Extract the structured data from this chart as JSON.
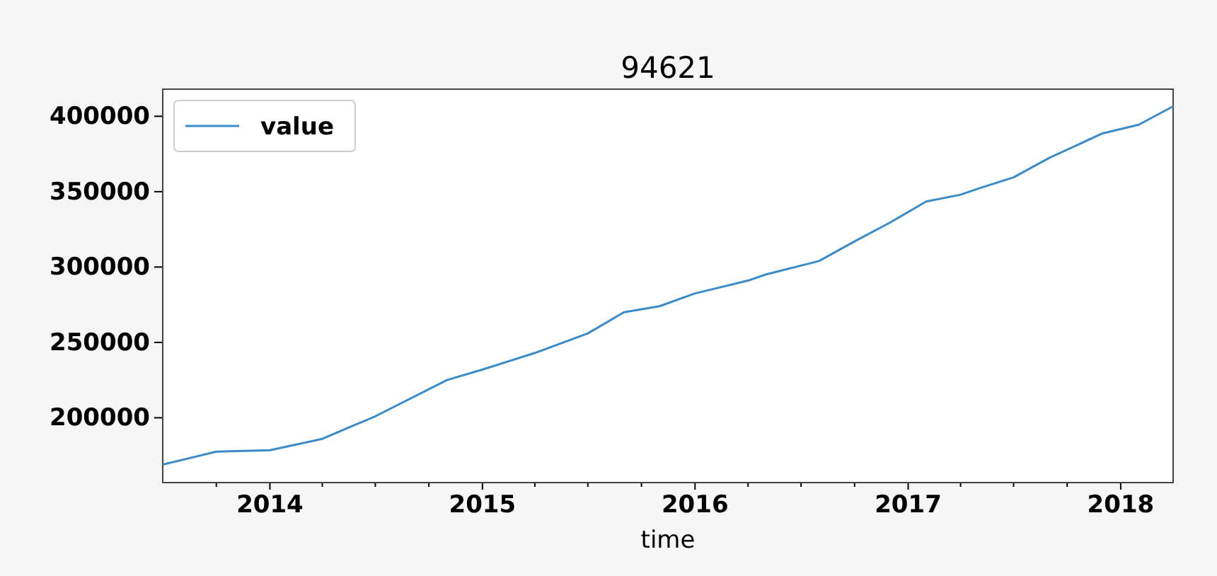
{
  "chart_data": {
    "type": "line",
    "title": "94621",
    "xlabel": "time",
    "xlim": [
      "2013-07",
      "2018-04"
    ],
    "xticks": [
      {
        "value": "2013-10",
        "label": null
      },
      {
        "value": "2014",
        "label": "2014"
      },
      {
        "value": "2014-04",
        "label": null
      },
      {
        "value": "2014-07",
        "label": null
      },
      {
        "value": "2014-10",
        "label": null
      },
      {
        "value": "2015",
        "label": "2015"
      },
      {
        "value": "2015-04",
        "label": null
      },
      {
        "value": "2015-07",
        "label": null
      },
      {
        "value": "2015-10",
        "label": null
      },
      {
        "value": "2016",
        "label": "2016"
      },
      {
        "value": "2016-04",
        "label": null
      },
      {
        "value": "2016-07",
        "label": null
      },
      {
        "value": "2016-10",
        "label": null
      },
      {
        "value": "2017",
        "label": "2017"
      },
      {
        "value": "2017-04",
        "label": null
      },
      {
        "value": "2017-07",
        "label": null
      },
      {
        "value": "2017-10",
        "label": null
      },
      {
        "value": "2018",
        "label": "2018"
      }
    ],
    "ylim": [
      157000,
      418000
    ],
    "yticks": [
      200000,
      250000,
      300000,
      350000,
      400000
    ],
    "grid": false,
    "legend": "top left",
    "x": [
      "2013-07",
      "2013-10",
      "2014-01",
      "2014-04",
      "2014-07",
      "2014-11",
      "2015-01",
      "2015-04",
      "2015-07",
      "2015-09",
      "2015-11",
      "2016-01",
      "2016-04",
      "2016-05",
      "2016-08",
      "2016-10",
      "2016-12",
      "2017-02",
      "2017-04",
      "2017-05",
      "2017-07",
      "2017-09",
      "2017-12",
      "2018-02",
      "2018-04"
    ],
    "series": [
      {
        "name": "value",
        "color": "#3b8bc8",
        "values": [
          169000,
          177500,
          178500,
          186000,
          201000,
          225000,
          232000,
          243000,
          256000,
          270000,
          274000,
          282500,
          291000,
          295000,
          304000,
          317000,
          329500,
          343500,
          348000,
          352000,
          359500,
          372500,
          388700,
          394400,
          406600
        ]
      }
    ]
  }
}
